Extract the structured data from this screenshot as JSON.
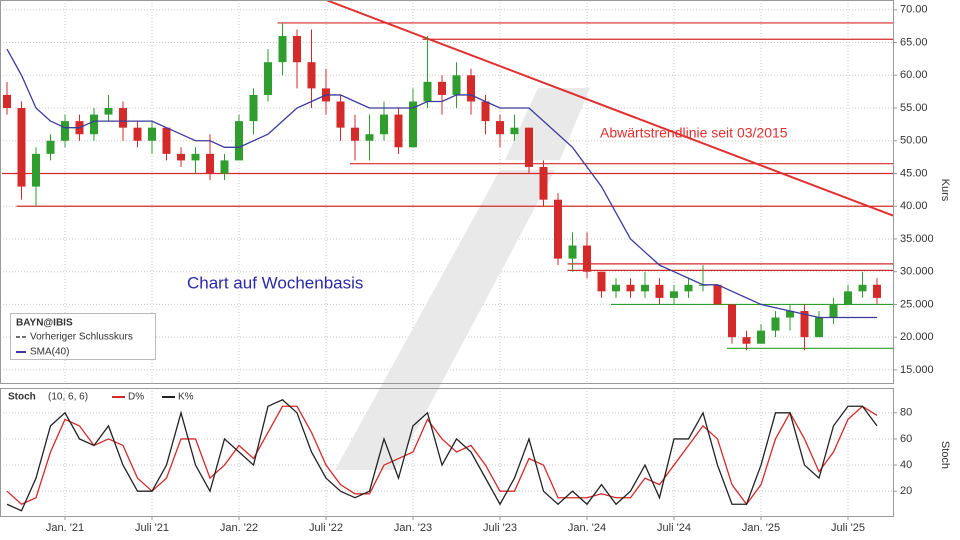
{
  "chart_data": [
    {
      "type": "candlestick",
      "subtitle": "Chart auf Wochenbasis",
      "legend_title": "BAYN@IBIS",
      "y_label": "Kurs",
      "x": [
        "2020-09",
        "2020-10",
        "2020-11",
        "2020-12",
        "2021-01",
        "2021-02",
        "2021-03",
        "2021-04",
        "2021-05",
        "2021-06",
        "2021-07",
        "2021-08",
        "2021-09",
        "2021-10",
        "2021-11",
        "2021-12",
        "2022-01",
        "2022-02",
        "2022-03",
        "2022-04",
        "2022-05",
        "2022-06",
        "2022-07",
        "2022-08",
        "2022-09",
        "2022-10",
        "2022-11",
        "2022-12",
        "2023-01",
        "2023-02",
        "2023-03",
        "2023-04",
        "2023-05",
        "2023-06",
        "2023-07",
        "2023-08",
        "2023-09",
        "2023-10",
        "2023-11",
        "2023-12",
        "2024-01",
        "2024-02",
        "2024-03",
        "2024-04",
        "2024-05",
        "2024-06",
        "2024-07",
        "2024-08",
        "2024-09",
        "2024-10",
        "2024-11",
        "2024-12",
        "2025-01",
        "2025-02",
        "2025-03",
        "2025-04",
        "2025-05",
        "2025-06",
        "2025-07",
        "2025-08",
        "2025-09"
      ],
      "open": [
        57,
        55,
        43,
        48,
        50,
        53,
        51,
        54,
        55,
        52,
        50,
        52,
        48,
        47,
        48,
        45,
        47,
        53,
        57,
        62,
        66,
        62,
        58,
        56,
        52,
        50,
        51,
        54,
        49,
        56,
        59,
        57,
        60,
        56,
        53,
        51,
        52,
        46,
        41,
        32,
        34,
        30,
        27,
        28,
        27,
        28,
        26,
        27,
        28,
        28,
        25,
        20,
        19,
        21,
        23,
        24,
        20,
        23,
        25,
        27,
        28
      ],
      "high": [
        59,
        56,
        49,
        51,
        54,
        54,
        55,
        57,
        56,
        53,
        53,
        52,
        49,
        49,
        51,
        48,
        54,
        58,
        64,
        68,
        67,
        67,
        61,
        57,
        54,
        54,
        56,
        55,
        58,
        66,
        60,
        62,
        61,
        57,
        54,
        54,
        52,
        47,
        42,
        36,
        36,
        30,
        29,
        29,
        30,
        29,
        28,
        29,
        31,
        28,
        25,
        21,
        22,
        24,
        25,
        25,
        24,
        26,
        28,
        30,
        29
      ],
      "low": [
        54,
        41,
        40,
        47,
        49,
        50,
        50,
        53,
        50,
        49,
        48,
        47,
        46,
        45,
        44,
        44,
        47,
        51,
        56,
        60,
        58,
        55,
        54,
        50,
        47,
        47,
        50,
        48,
        49,
        55,
        54,
        55,
        54,
        51,
        49,
        50,
        45,
        40,
        31,
        30,
        29,
        26,
        26,
        26,
        26,
        25,
        25,
        26,
        27,
        25,
        19,
        18,
        19,
        20,
        21,
        18,
        20,
        22,
        25,
        26,
        25
      ],
      "close": [
        55,
        43,
        48,
        50,
        53,
        51,
        54,
        55,
        52,
        50,
        52,
        48,
        47,
        48,
        45,
        47,
        53,
        57,
        62,
        66,
        62,
        58,
        56,
        52,
        50,
        51,
        54,
        49,
        56,
        59,
        57,
        60,
        56,
        53,
        51,
        52,
        46,
        41,
        32,
        34,
        30,
        27,
        28,
        27,
        28,
        26,
        27,
        28,
        28,
        25,
        20,
        19,
        21,
        23,
        24,
        20,
        23,
        25,
        27,
        28,
        26
      ],
      "up_color": "#2f9e2f",
      "down_color": "#d42a2a",
      "prev_close": {
        "name": "Vorheriger Schlusskurs",
        "color": "#444444"
      },
      "sma": {
        "name": "SMA(40)",
        "color": "#3b3b9e",
        "values": [
          64,
          60,
          55,
          53,
          52,
          52,
          53,
          53,
          53,
          53,
          53,
          52,
          51,
          50,
          50,
          49,
          49,
          50,
          51,
          53,
          55,
          56,
          57,
          57,
          56,
          55,
          55,
          55,
          55,
          56,
          56,
          57,
          57,
          56,
          55,
          55,
          55,
          53,
          51,
          49,
          46,
          43,
          39,
          35,
          33,
          31,
          30,
          29,
          28,
          28,
          27,
          26,
          25,
          24.5,
          24,
          23.5,
          23,
          23,
          23,
          23,
          23
        ]
      },
      "hlines": [
        {
          "value": 68,
          "from": "2022-04",
          "color": "#d42a2a"
        },
        {
          "value": 65.5,
          "from": "2023-02",
          "color": "#d42a2a"
        },
        {
          "value": 46.5,
          "from": "2022-09",
          "color": "#d42a2a"
        },
        {
          "value": 45,
          "from": "2020-09",
          "color": "#d42a2a"
        },
        {
          "value": 40,
          "from": "2020-10",
          "color": "#d42a2a"
        },
        {
          "value": 31.2,
          "from": "2023-12",
          "color": "#d42a2a"
        },
        {
          "value": 30.2,
          "from": "2023-12",
          "color": "#d42a2a"
        },
        {
          "value": 25,
          "from": "2024-03",
          "color": "#2f9e2f"
        },
        {
          "value": 18.3,
          "from": "2024-11",
          "color": "#2f9e2f"
        }
      ],
      "trendline": {
        "label": "Abwärtstrendlinie seit 03/2015",
        "color": "#e03030",
        "from": {
          "x": "2022-07",
          "y": 71.5
        },
        "to": {
          "x": "2025-09",
          "y": 39.5
        }
      },
      "ylim": [
        13,
        71.5
      ],
      "yticks": [
        {
          "value": 70,
          "label": "70.00"
        },
        {
          "value": 65,
          "label": "65.00"
        },
        {
          "value": 60,
          "label": "60.00"
        },
        {
          "value": 55,
          "label": "55.00"
        },
        {
          "value": 50,
          "label": "50.00"
        },
        {
          "value": 45,
          "label": "45.00"
        },
        {
          "value": 40,
          "label": "40.00"
        },
        {
          "value": 35,
          "label": "35.000"
        },
        {
          "value": 30,
          "label": "30.000"
        },
        {
          "value": 25,
          "label": "25.000"
        },
        {
          "value": 20,
          "label": "20.000"
        },
        {
          "value": 15,
          "label": "15.000"
        }
      ],
      "grid": true
    },
    {
      "type": "line",
      "title": "Stoch",
      "params": "(10, 6, 6)",
      "y_label": "Stoch",
      "series": [
        {
          "name": "D%",
          "color": "#d42a2a",
          "values": [
            20,
            10,
            15,
            50,
            75,
            70,
            55,
            60,
            55,
            30,
            20,
            30,
            60,
            60,
            30,
            40,
            55,
            45,
            65,
            85,
            85,
            65,
            40,
            25,
            18,
            18,
            40,
            45,
            50,
            75,
            60,
            50,
            55,
            40,
            20,
            20,
            45,
            40,
            15,
            15,
            15,
            18,
            15,
            15,
            30,
            25,
            40,
            55,
            70,
            60,
            25,
            10,
            25,
            60,
            80,
            60,
            35,
            50,
            75,
            85,
            78
          ]
        },
        {
          "name": "K%",
          "color": "#222222",
          "values": [
            10,
            5,
            30,
            70,
            80,
            60,
            55,
            70,
            40,
            20,
            20,
            40,
            80,
            40,
            20,
            60,
            50,
            40,
            85,
            90,
            80,
            50,
            30,
            20,
            15,
            20,
            60,
            30,
            70,
            80,
            40,
            60,
            50,
            30,
            10,
            30,
            60,
            20,
            10,
            20,
            10,
            25,
            10,
            20,
            40,
            15,
            60,
            60,
            80,
            40,
            10,
            10,
            40,
            80,
            80,
            40,
            30,
            70,
            85,
            85,
            70
          ]
        }
      ],
      "ylim": [
        1,
        99
      ],
      "yticks": [
        20,
        40,
        60,
        80
      ],
      "xticks": [
        {
          "value": "2021-01",
          "label": "Jan. '21"
        },
        {
          "value": "2021-07",
          "label": "Juli '21"
        },
        {
          "value": "2022-01",
          "label": "Jan. '22"
        },
        {
          "value": "2022-07",
          "label": "Juli '22"
        },
        {
          "value": "2023-01",
          "label": "Jan. '23"
        },
        {
          "value": "2023-07",
          "label": "Juli '23"
        },
        {
          "value": "2024-01",
          "label": "Jan. '24"
        },
        {
          "value": "2024-07",
          "label": "Juli '24"
        },
        {
          "value": "2025-01",
          "label": "Jan. '25"
        },
        {
          "value": "2025-07",
          "label": "Juli '25"
        }
      ],
      "grid": true
    }
  ]
}
